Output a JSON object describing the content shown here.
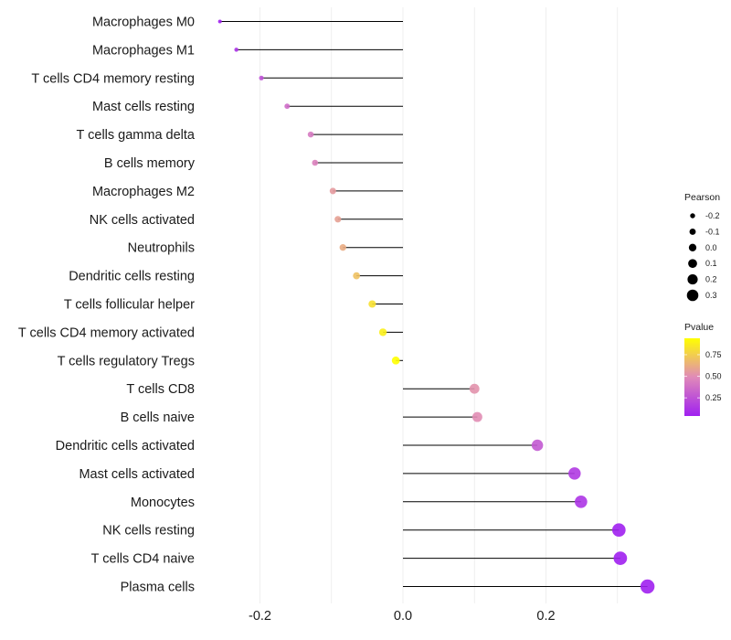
{
  "chart_data": {
    "type": "lollipop",
    "title": "",
    "xlabel": "",
    "ylabel": "",
    "xlim": [
      -0.27,
      0.36
    ],
    "x_ticks": [
      -0.2,
      0.0,
      0.2
    ],
    "x_tick_labels": [
      "-0.2",
      "0.0",
      "0.2"
    ],
    "x_minor_gridlines": [
      -0.1,
      0.1,
      0.3
    ],
    "grid": true,
    "categories": [
      "Macrophages M0",
      "Macrophages M1",
      "T cells CD4 memory resting",
      "Mast cells resting",
      "T cells gamma delta",
      "B cells memory",
      "Macrophages M2",
      "NK cells activated",
      "Neutrophils",
      "Dendritic cells resting",
      "T cells follicular helper",
      "T cells CD4 memory activated",
      "T cells regulatory  Tregs",
      "T cells CD8",
      "B cells naive",
      "Dendritic cells activated",
      "Mast cells activated",
      "Monocytes",
      "NK cells resting",
      "T cells CD4 naive",
      "Plasma cells"
    ],
    "pearson": [
      -0.256,
      -0.233,
      -0.198,
      -0.162,
      -0.129,
      -0.123,
      -0.098,
      -0.091,
      -0.084,
      -0.065,
      -0.043,
      -0.028,
      -0.01,
      0.1,
      0.104,
      0.188,
      0.24,
      0.249,
      0.302,
      0.304,
      0.342
    ],
    "pvalue": [
      0.02,
      0.12,
      0.25,
      0.36,
      0.42,
      0.45,
      0.55,
      0.58,
      0.62,
      0.7,
      0.82,
      0.88,
      0.96,
      0.52,
      0.5,
      0.28,
      0.15,
      0.13,
      0.03,
      0.03,
      0.01
    ],
    "size_legend": {
      "title": "Pearson",
      "values": [
        -0.2,
        -0.1,
        0.0,
        0.1,
        0.2,
        0.3
      ],
      "labels": [
        "-0.2",
        "-0.1",
        "0.0",
        "0.1",
        "0.2",
        "0.3"
      ]
    },
    "color_legend": {
      "title": "Pvalue",
      "range": [
        0.04,
        0.94
      ],
      "ticks": [
        0.25,
        0.5,
        0.75
      ],
      "tick_labels": [
        "0.25",
        "0.50",
        "0.75"
      ],
      "low_color": "#a020f0",
      "mid_color": "#e08ab8",
      "high_color": "#ffff00"
    },
    "legend_position": "right",
    "segment_color": "#000000",
    "gridline_color": "#ebebeb"
  }
}
